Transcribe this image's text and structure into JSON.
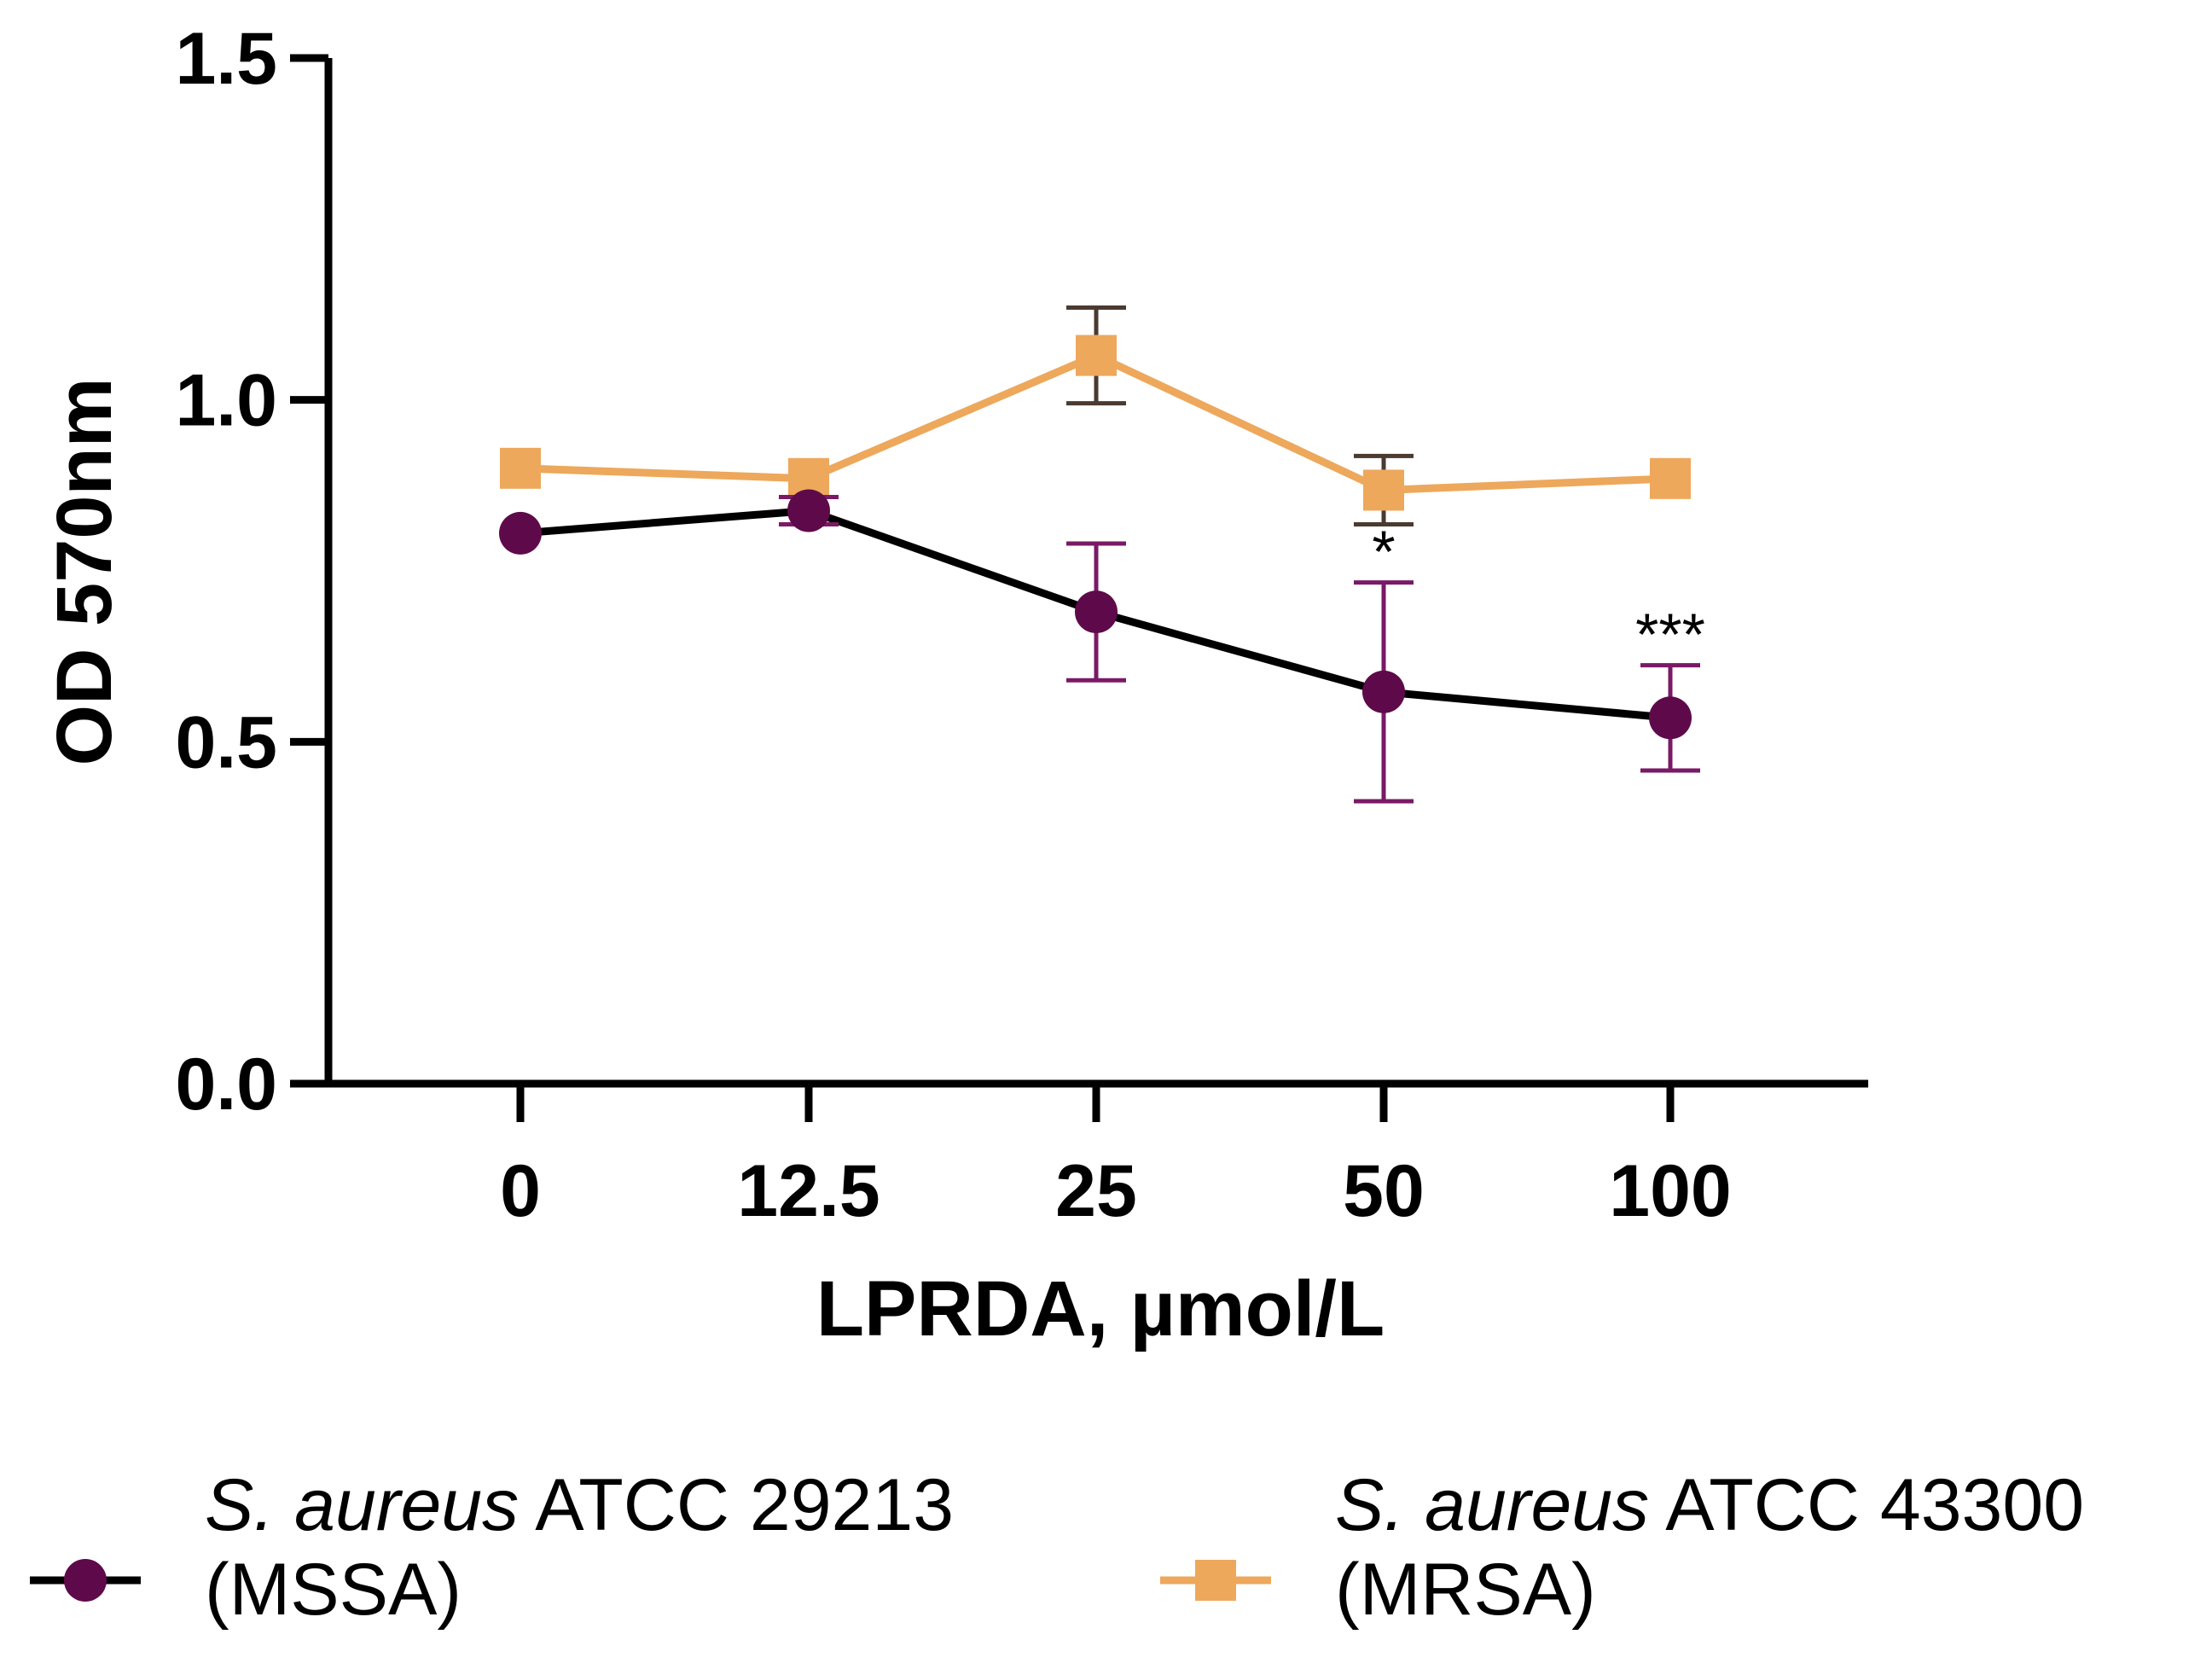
{
  "chart_data": {
    "type": "line",
    "xlabel": "LPRDA, µmol/L",
    "ylabel": "OD 570nm",
    "categories": [
      "0",
      "12.5",
      "25",
      "50",
      "100"
    ],
    "ylim": [
      0,
      1.5
    ],
    "yticks": [
      "0.0",
      "0.5",
      "1.0",
      "1.5"
    ],
    "ytick_values": [
      0,
      0.5,
      1.0,
      1.5
    ],
    "series": [
      {
        "name": "S. aureus ATCC 29213 (MSSA)",
        "name_italic": "S. aureus",
        "name_rest": " ATCC 29213",
        "name_line2": "(MSSA)",
        "marker": "circle",
        "color": "#5e0a4a",
        "line_color": "#000000",
        "values": [
          0.805,
          0.838,
          0.69,
          0.573,
          0.535
        ],
        "errors": [
          0.0,
          0.02,
          0.1,
          0.16,
          0.077
        ]
      },
      {
        "name": "S. aureus ATCC 43300 (MRSA)",
        "name_italic": "S. aureus",
        "name_rest": " ATCC 43300",
        "name_line2": "(MRSA)",
        "marker": "square",
        "color": "#eda85c",
        "line_color": "#eda85c",
        "values": [
          0.9,
          0.885,
          1.065,
          0.868,
          0.885
        ],
        "errors": [
          0.0,
          0.0,
          0.07,
          0.05,
          0.0
        ]
      }
    ],
    "annotations": [
      {
        "category": "50",
        "text": "*",
        "series": 0
      },
      {
        "category": "100",
        "text": "***",
        "series": 0
      }
    ]
  }
}
